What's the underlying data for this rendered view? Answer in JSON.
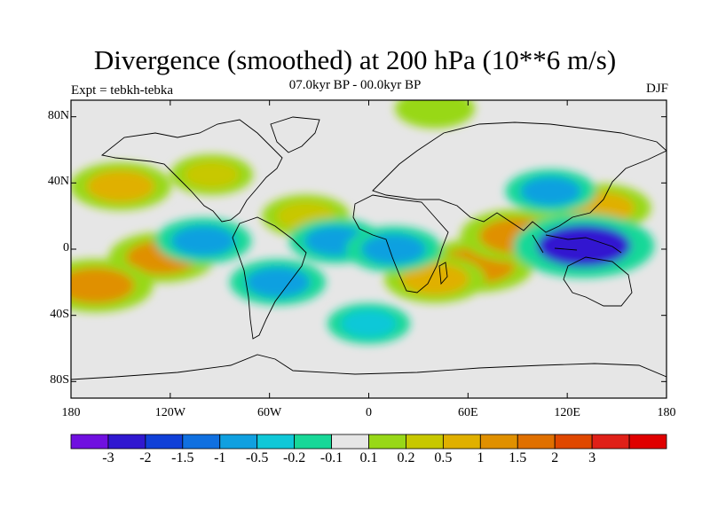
{
  "header": {
    "title": "Divergence (smoothed) at 200 hPa (10**6 m/s)",
    "experiment": "Expt = tebkh-tebka",
    "period": "07.0kyr BP - 00.0kyr BP",
    "season": "DJF"
  },
  "map": {
    "projection": "cylindrical equidistant",
    "lon_range": [
      -180,
      180
    ],
    "lat_range": [
      -90,
      90
    ],
    "background_color": "#e6e6e6",
    "y_ticks": [
      {
        "lat": 80,
        "label": "80N"
      },
      {
        "lat": 40,
        "label": "40N"
      },
      {
        "lat": 0,
        "label": "0"
      },
      {
        "lat": -40,
        "label": "40S"
      },
      {
        "lat": -80,
        "label": "80S"
      }
    ],
    "x_ticks": [
      {
        "lon": -180,
        "label": "180"
      },
      {
        "lon": -120,
        "label": "120W"
      },
      {
        "lon": -60,
        "label": "60W"
      },
      {
        "lon": 0,
        "label": "0"
      },
      {
        "lon": 60,
        "label": "60E"
      },
      {
        "lon": 120,
        "label": "120E"
      },
      {
        "lon": 180,
        "label": "180"
      }
    ],
    "features": [
      {
        "name": "eastern-pacific-nh-convergence",
        "lon": -150,
        "lat": 38,
        "value": 1.0
      },
      {
        "name": "atlantic-nh-divergence",
        "lon": -38,
        "lat": 20,
        "value": 0.5
      },
      {
        "name": "central-pacific-sh-positive",
        "lon": -125,
        "lat": -5,
        "value": 1.2
      },
      {
        "name": "south-pacific-positive",
        "lon": -165,
        "lat": -22,
        "value": 1.5
      },
      {
        "name": "indian-ocean-positive",
        "lon": 65,
        "lat": -10,
        "value": 1.5
      },
      {
        "name": "africa-sh-positive",
        "lon": 40,
        "lat": -18,
        "value": 1.0
      },
      {
        "name": "bay-of-bengal-positive",
        "lon": 90,
        "lat": 8,
        "value": 1.5
      },
      {
        "name": "west-pacific-nh-positive",
        "lon": 140,
        "lat": 25,
        "value": 1.0
      },
      {
        "name": "maritime-continent-negative",
        "lon": 130,
        "lat": 2,
        "value": -2.5
      },
      {
        "name": "tropical-pacific-negative",
        "lon": -100,
        "lat": 5,
        "value": -0.8
      },
      {
        "name": "equatorial-atlantic-negative",
        "lon": -20,
        "lat": 5,
        "value": -0.7
      },
      {
        "name": "central-africa-negative",
        "lon": 15,
        "lat": 0,
        "value": -0.8
      },
      {
        "name": "east-asia-negative",
        "lon": 110,
        "lat": 35,
        "value": -0.6
      },
      {
        "name": "south-america-negative",
        "lon": -55,
        "lat": -20,
        "value": -0.8
      },
      {
        "name": "southern-ocean-negative",
        "lon": 0,
        "lat": -45,
        "value": -0.3
      },
      {
        "name": "north-america-positive",
        "lon": -95,
        "lat": 45,
        "value": 0.3
      },
      {
        "name": "arctic-positive",
        "lon": 40,
        "lat": 85,
        "value": 0.2
      }
    ]
  },
  "colorbar": {
    "colors": [
      "#7010e0",
      "#3018d0",
      "#1040d8",
      "#1070e0",
      "#10a0e0",
      "#10c8d8",
      "#18d898",
      "#e6e6e6",
      "#98d818",
      "#c8c800",
      "#e0b000",
      "#e09000",
      "#e07000",
      "#e04800",
      "#e02018",
      "#e00000"
    ],
    "labels": [
      "-3",
      "-2",
      "-1.5",
      "-1",
      "-0.5",
      "-0.2",
      "-0.1",
      "0.1",
      "0.2",
      "0.5",
      "1",
      "1.5",
      "2",
      "3"
    ]
  }
}
